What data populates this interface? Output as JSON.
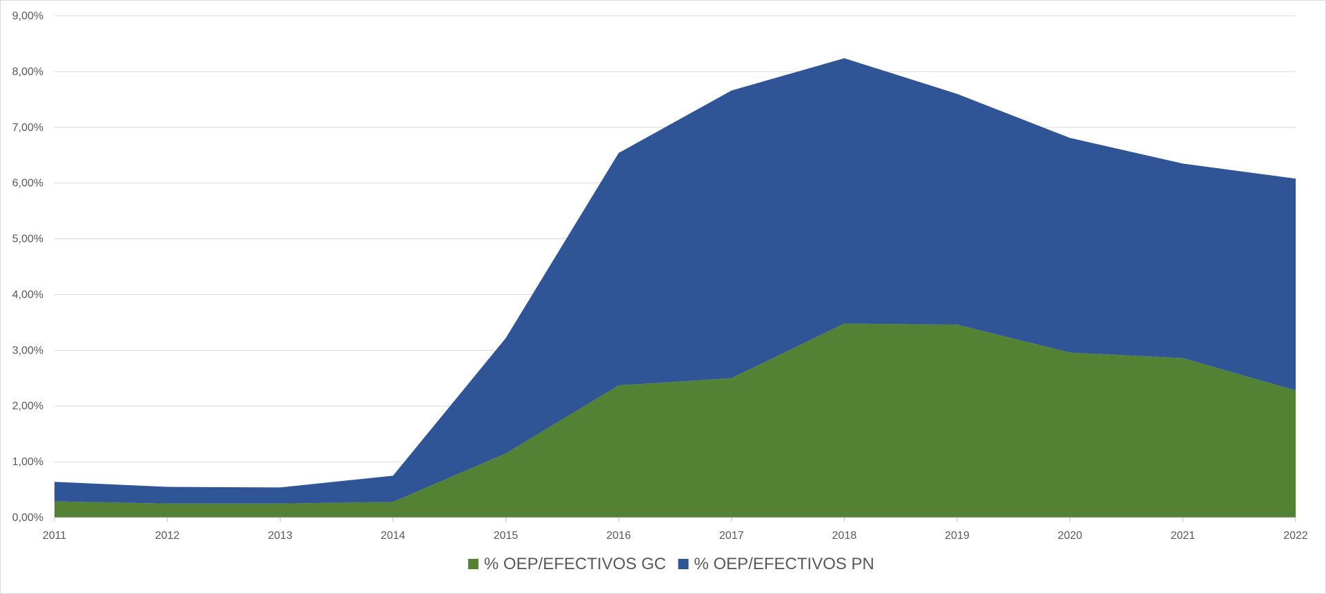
{
  "chart_data": {
    "type": "area",
    "stacked": true,
    "title": "",
    "xlabel": "",
    "ylabel": "",
    "x": [
      "2011",
      "2012",
      "2013",
      "2014",
      "2015",
      "2016",
      "2017",
      "2018",
      "2019",
      "2020",
      "2021",
      "2022"
    ],
    "series": [
      {
        "name": "% OEP/EFECTIVOS GC",
        "color": "#548235",
        "values": [
          0.29,
          0.25,
          0.25,
          0.28,
          1.15,
          2.37,
          2.5,
          3.48,
          3.46,
          2.96,
          2.86,
          2.28
        ]
      },
      {
        "name": "% OEP/EFECTIVOS PN",
        "color": "#2f5597",
        "values": [
          0.35,
          0.3,
          0.29,
          0.47,
          2.07,
          4.17,
          5.16,
          4.76,
          4.14,
          3.85,
          3.49,
          3.8
        ]
      }
    ],
    "ylim": [
      0,
      9
    ],
    "yticks": [
      0,
      1,
      2,
      3,
      4,
      5,
      6,
      7,
      8,
      9
    ],
    "ytick_labels": [
      "0,00%",
      "1,00%",
      "2,00%",
      "3,00%",
      "4,00%",
      "5,00%",
      "6,00%",
      "7,00%",
      "8,00%",
      "9,00%"
    ],
    "grid": true,
    "grid_color": "#d9d9d9",
    "axis_color": "#bfbfbf",
    "legend_position": "bottom"
  }
}
